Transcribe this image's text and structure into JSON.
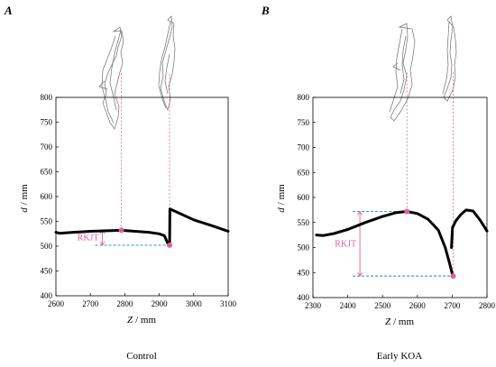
{
  "panels": [
    {
      "letter": "A",
      "caption": "Control",
      "annotation": "RKJT"
    },
    {
      "letter": "B",
      "caption": "Early  KOA",
      "annotation": "RKJT"
    }
  ],
  "chart_data": [
    {
      "type": "line",
      "xlabel_var": "Z",
      "xlabel_unit": "/ mm",
      "ylabel_var": "d",
      "ylabel_unit": "/ mm",
      "xlim": [
        2600,
        3100
      ],
      "ylim": [
        400,
        800
      ],
      "xticks": [
        2600,
        2700,
        2800,
        2900,
        3000,
        3100
      ],
      "yticks": [
        400,
        450,
        500,
        550,
        600,
        650,
        700,
        750,
        800
      ],
      "series": [
        {
          "values": [
            [
              2600,
              528
            ],
            [
              2610,
              526
            ],
            [
              2650,
              528
            ],
            [
              2700,
              530
            ],
            [
              2750,
              531
            ],
            [
              2790,
              532
            ],
            [
              2830,
              530
            ],
            [
              2870,
              528
            ],
            [
              2900,
              525
            ],
            [
              2915,
              521
            ],
            [
              2925,
              505
            ],
            [
              2930,
              502
            ]
          ]
        },
        {
          "values": [
            [
              2930,
              508
            ],
            [
              2931,
              575
            ],
            [
              2960,
              566
            ],
            [
              3000,
              553
            ],
            [
              3050,
              542
            ],
            [
              3100,
              530
            ]
          ]
        }
      ],
      "markers": [
        [
          2790,
          532
        ],
        [
          2930,
          502
        ]
      ],
      "rkjt": {
        "top": 532,
        "bottom": 502,
        "x": 2735
      },
      "color_curve": "#000000",
      "color_marker": "#e0609a",
      "color_level": "#1e7fd0"
    },
    {
      "type": "line",
      "xlabel_var": "Z",
      "xlabel_unit": "/ mm",
      "ylabel_var": "d",
      "ylabel_unit": "/ mm",
      "xlim": [
        2300,
        2800
      ],
      "ylim": [
        400,
        800
      ],
      "xticks": [
        2300,
        2400,
        2500,
        2600,
        2700,
        2800
      ],
      "yticks": [
        400,
        450,
        500,
        550,
        600,
        650,
        700,
        750,
        800
      ],
      "series": [
        {
          "values": [
            [
              2310,
              525
            ],
            [
              2330,
              524
            ],
            [
              2360,
              528
            ],
            [
              2400,
              536
            ],
            [
              2450,
              550
            ],
            [
              2500,
              562
            ],
            [
              2540,
              570
            ],
            [
              2570,
              572
            ],
            [
              2600,
              568
            ],
            [
              2630,
              557
            ],
            [
              2660,
              535
            ],
            [
              2680,
              500
            ],
            [
              2692,
              470
            ],
            [
              2700,
              448
            ],
            [
              2703,
              443
            ]
          ]
        },
        {
          "values": [
            [
              2698,
              500
            ],
            [
              2701,
              540
            ],
            [
              2710,
              553
            ],
            [
              2725,
              566
            ],
            [
              2740,
              575
            ],
            [
              2760,
              573
            ],
            [
              2780,
              555
            ],
            [
              2800,
              533
            ]
          ]
        }
      ],
      "markers": [
        [
          2570,
          572
        ],
        [
          2703,
          443
        ]
      ],
      "rkjt": {
        "top": 572,
        "bottom": 443,
        "x": 2435
      },
      "color_curve": "#000000",
      "color_marker": "#e0609a",
      "color_level": "#1e7fd0"
    }
  ]
}
